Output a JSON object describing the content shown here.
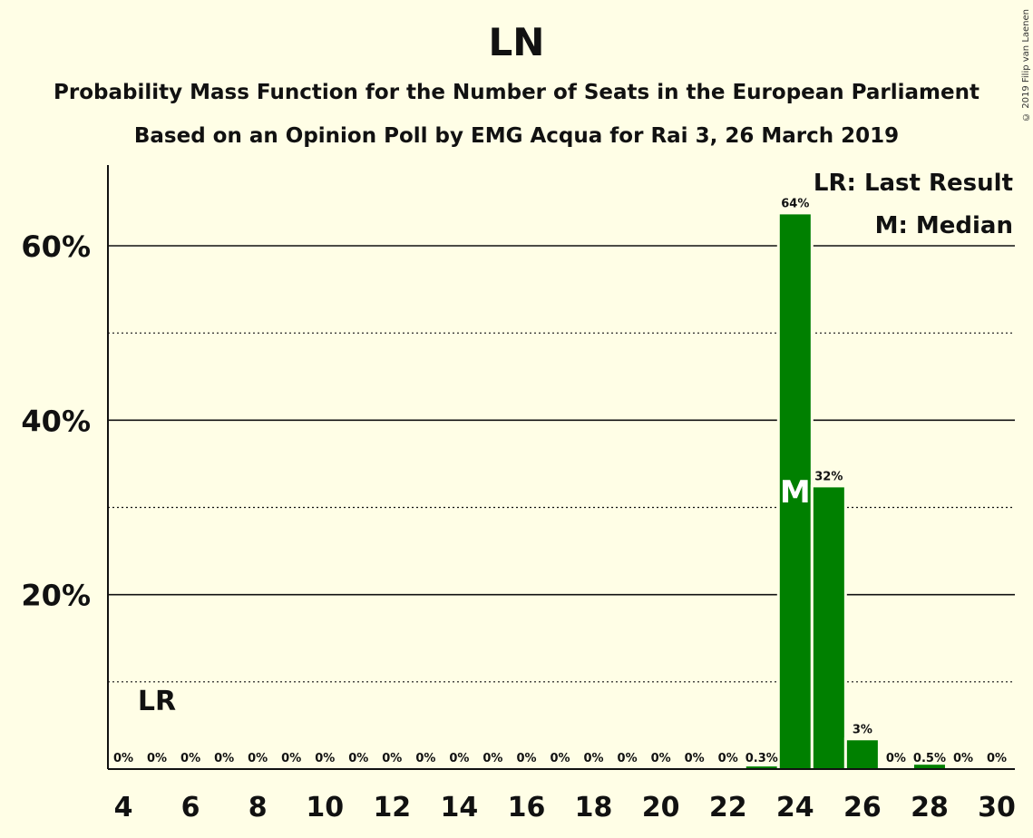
{
  "copyright": "© 2019 Filip van Laenen",
  "chart_data": {
    "type": "bar",
    "title": "LN",
    "subtitle": "Probability Mass Function for the Number of Seats in the European Parliament",
    "subtitle2": "Based on an Opinion Poll by EMG Acqua for Rai 3, 26 March 2019",
    "x": [
      4,
      5,
      6,
      7,
      8,
      9,
      10,
      11,
      12,
      13,
      14,
      15,
      16,
      17,
      18,
      19,
      20,
      21,
      22,
      23,
      24,
      25,
      26,
      27,
      28,
      29,
      30
    ],
    "values": [
      0,
      0,
      0,
      0,
      0,
      0,
      0,
      0,
      0,
      0,
      0,
      0,
      0,
      0,
      0,
      0,
      0,
      0,
      0,
      0.3,
      63.6,
      32.3,
      3.3,
      0,
      0.5,
      0,
      0
    ],
    "labels": [
      "0%",
      "0%",
      "0%",
      "0%",
      "0%",
      "0%",
      "0%",
      "0%",
      "0%",
      "0%",
      "0%",
      "0%",
      "0%",
      "0%",
      "0%",
      "0%",
      "0%",
      "0%",
      "0%",
      "0.3%",
      "64%",
      "32%",
      "3%",
      "0%",
      "0.5%",
      "0%",
      "0%"
    ],
    "xticks": [
      4,
      6,
      8,
      10,
      12,
      14,
      16,
      18,
      20,
      22,
      24,
      26,
      28,
      30
    ],
    "yticks": [
      20,
      40,
      60
    ],
    "ytick_labels": [
      "20%",
      "40%",
      "60%"
    ],
    "ylim": [
      0,
      69
    ],
    "grid": {
      "major": [
        20,
        40,
        60
      ],
      "minor": [
        10,
        30,
        50
      ]
    },
    "bar_color": "#008000",
    "last_result": {
      "x": 5,
      "label": "LR"
    },
    "median": {
      "x": 24,
      "label": "M"
    },
    "legend": [
      "LR: Last Result",
      "M: Median"
    ],
    "legend_position": "top-right"
  }
}
